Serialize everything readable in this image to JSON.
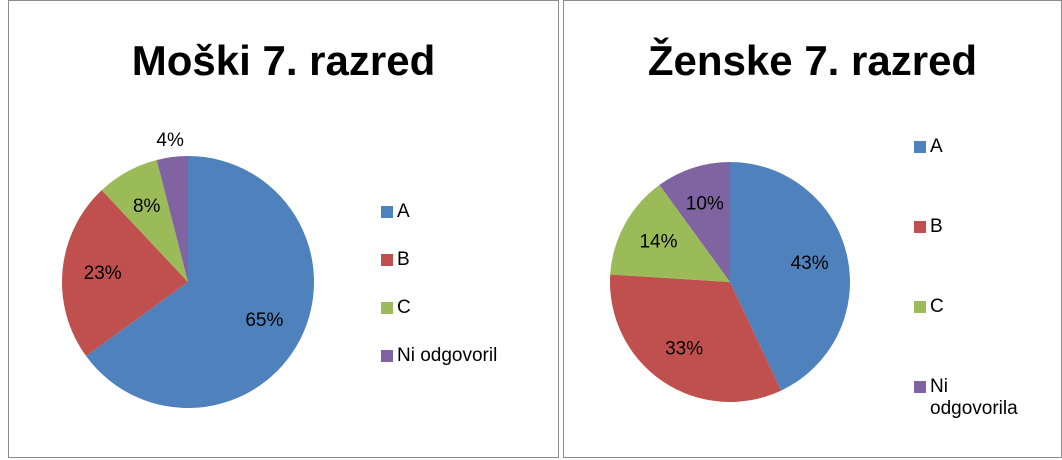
{
  "chart_data": [
    {
      "type": "pie",
      "title": "Moški 7. razred",
      "categories": [
        "A",
        "B",
        "C",
        "Ni odgovoril"
      ],
      "values": [
        65,
        23,
        8,
        4
      ],
      "value_labels": [
        "65%",
        "23%",
        "8%",
        "4%"
      ],
      "colors": [
        "#4f81bd",
        "#c0504d",
        "#9bbb59",
        "#8064a2"
      ],
      "legend": "right"
    },
    {
      "type": "pie",
      "title": "Ženske 7. razred",
      "categories": [
        "A",
        "B",
        "C",
        "Ni odgovorila"
      ],
      "values": [
        43,
        33,
        14,
        10
      ],
      "value_labels": [
        "43%",
        "33%",
        "14%",
        "10%"
      ],
      "colors": [
        "#4f81bd",
        "#c0504d",
        "#9bbb59",
        "#8064a2"
      ],
      "legend": "right"
    }
  ]
}
